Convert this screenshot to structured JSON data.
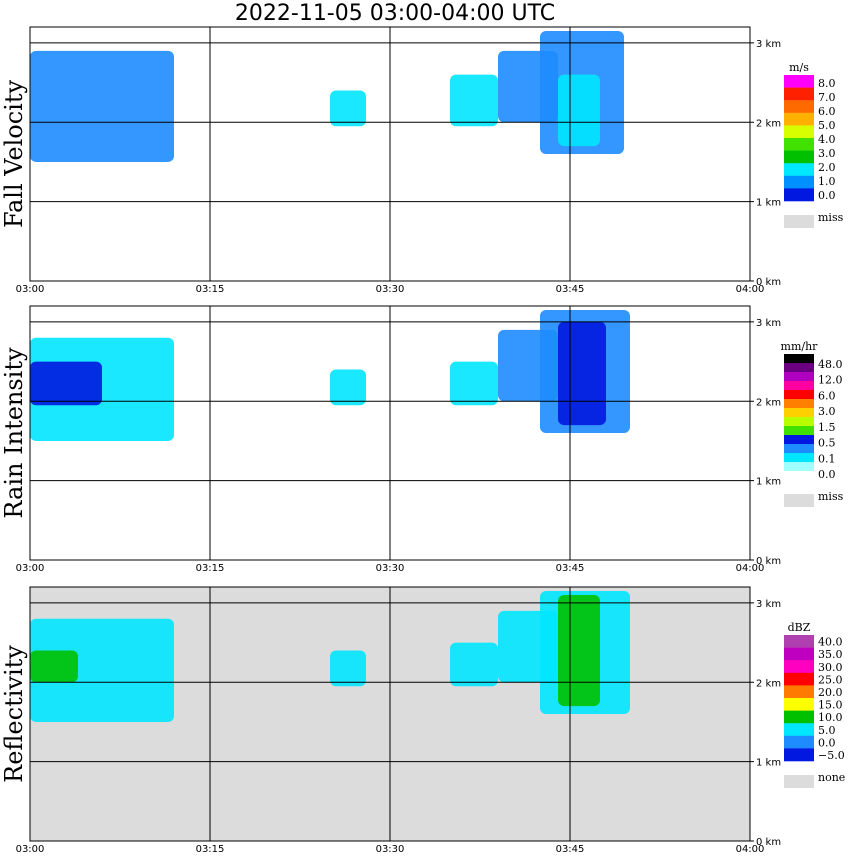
{
  "title": "2022-11-05   03:00-04:00 UTC",
  "chart_data": [
    {
      "type": "heatmap",
      "ylabel": "Fall Velocity",
      "x_ticks": [
        "03:00",
        "03:15",
        "03:30",
        "03:45",
        "04:00"
      ],
      "y_ticks": [
        "0 km",
        "1 km",
        "2 km",
        "3 km"
      ],
      "ylim": [
        0,
        3.2
      ],
      "background": "#ffffff",
      "legend": {
        "unit": "m/s",
        "labels": [
          "8.0",
          "7.0",
          "6.0",
          "5.0",
          "4.0",
          "3.0",
          "2.0",
          "1.0",
          "0.0"
        ],
        "colors": [
          "#ff00ff",
          "#ff2000",
          "#ff6a00",
          "#ffb000",
          "#d8ff00",
          "#40e000",
          "#00c000",
          "#00e8ff",
          "#0090ff",
          "#0018e0"
        ],
        "missing_label": "miss",
        "missing_color": "#dcdcdc"
      },
      "echoes": [
        {
          "x": [
            0,
            12
          ],
          "y": [
            1.5,
            2.9
          ],
          "color": "#1e8cff"
        },
        {
          "x": [
            25,
            28
          ],
          "y": [
            1.95,
            2.4
          ],
          "color": "#00e6ff"
        },
        {
          "x": [
            35,
            39
          ],
          "y": [
            1.95,
            2.6
          ],
          "color": "#00e6ff"
        },
        {
          "x": [
            39,
            44
          ],
          "y": [
            2.0,
            2.9
          ],
          "color": "#1e8cff"
        },
        {
          "x": [
            42.5,
            49.5
          ],
          "y": [
            1.6,
            3.15
          ],
          "color": "#1e8cff"
        },
        {
          "x": [
            44,
            47.5
          ],
          "y": [
            1.7,
            2.6
          ],
          "color": "#00e6ff"
        }
      ]
    },
    {
      "type": "heatmap",
      "ylabel": "Rain Intensity",
      "x_ticks": [
        "03:00",
        "03:15",
        "03:30",
        "03:45",
        "04:00"
      ],
      "y_ticks": [
        "0 km",
        "1 km",
        "2 km",
        "3 km"
      ],
      "ylim": [
        0,
        3.2
      ],
      "background": "#ffffff",
      "legend": {
        "unit": "mm/hr",
        "labels": [
          "48.0",
          "12.0",
          "6.0",
          "3.0",
          "1.5",
          "0.5",
          "0.1",
          "0.0"
        ],
        "colors": [
          "#000000",
          "#6a0080",
          "#b000c0",
          "#ff00a0",
          "#ff0000",
          "#ff8000",
          "#ffd000",
          "#b8ff00",
          "#40e000",
          "#0018e0",
          "#1e8cff",
          "#00e6ff",
          "#9effff",
          "#ffffff"
        ],
        "missing_label": "miss",
        "missing_color": "#dcdcdc"
      },
      "echoes": [
        {
          "x": [
            0,
            12
          ],
          "y": [
            1.5,
            2.8
          ],
          "color": "#00e6ff"
        },
        {
          "x": [
            0,
            6
          ],
          "y": [
            1.95,
            2.5
          ],
          "color": "#0018e0"
        },
        {
          "x": [
            25,
            28
          ],
          "y": [
            1.95,
            2.4
          ],
          "color": "#00e6ff"
        },
        {
          "x": [
            35,
            39
          ],
          "y": [
            1.95,
            2.5
          ],
          "color": "#00e6ff"
        },
        {
          "x": [
            39,
            44
          ],
          "y": [
            2.0,
            2.9
          ],
          "color": "#1e8cff"
        },
        {
          "x": [
            42.5,
            50
          ],
          "y": [
            1.6,
            3.15
          ],
          "color": "#1e8cff"
        },
        {
          "x": [
            44,
            48
          ],
          "y": [
            1.7,
            3.0
          ],
          "color": "#0018e0"
        }
      ]
    },
    {
      "type": "heatmap",
      "ylabel": "Reflectivity",
      "x_ticks": [
        "03:00",
        "03:15",
        "03:30",
        "03:45",
        "04:00"
      ],
      "y_ticks": [
        "0 km",
        "1 km",
        "2 km",
        "3 km"
      ],
      "ylim": [
        0,
        3.2
      ],
      "background": "#dcdcdc",
      "legend": {
        "unit": "dBZ",
        "labels": [
          "40.0",
          "35.0",
          "30.0",
          "25.0",
          "20.0",
          "15.0",
          "10.0",
          "5.0",
          "0.0",
          "−5.0"
        ],
        "colors": [
          "#b040b0",
          "#c000c0",
          "#ff00c0",
          "#ff0000",
          "#ff7a00",
          "#ffff00",
          "#00c000",
          "#00e6ff",
          "#1e8cff",
          "#0018e0"
        ],
        "missing_label": "none",
        "missing_color": "#dcdcdc"
      },
      "echoes": [
        {
          "x": [
            0,
            12
          ],
          "y": [
            1.5,
            2.8
          ],
          "color": "#00e6ff"
        },
        {
          "x": [
            0,
            4
          ],
          "y": [
            2.0,
            2.4
          ],
          "color": "#00c000"
        },
        {
          "x": [
            25,
            28
          ],
          "y": [
            1.95,
            2.4
          ],
          "color": "#00e6ff"
        },
        {
          "x": [
            35,
            39
          ],
          "y": [
            1.95,
            2.5
          ],
          "color": "#00e6ff"
        },
        {
          "x": [
            39,
            44
          ],
          "y": [
            2.0,
            2.9
          ],
          "color": "#00e6ff"
        },
        {
          "x": [
            42.5,
            50
          ],
          "y": [
            1.6,
            3.15
          ],
          "color": "#00e6ff"
        },
        {
          "x": [
            44,
            47.5
          ],
          "y": [
            1.7,
            3.1
          ],
          "color": "#00c000"
        }
      ]
    }
  ]
}
